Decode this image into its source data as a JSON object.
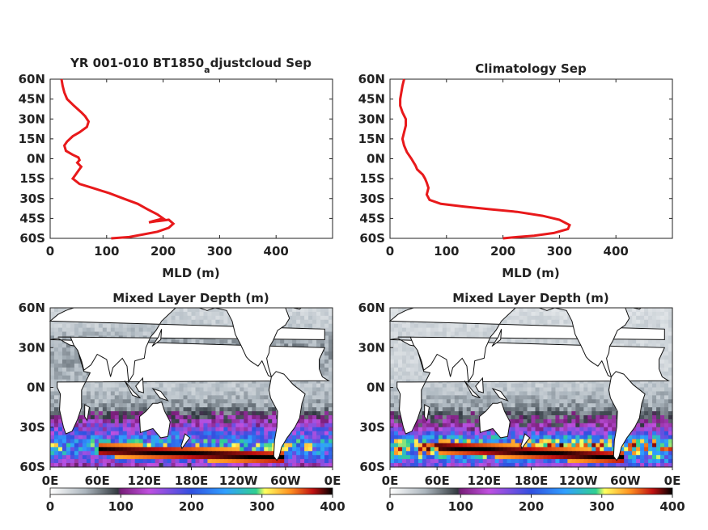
{
  "chart_data": [
    {
      "type": "line",
      "title_main": "YR 001-010 BT1850",
      "title_sub": "a",
      "title_tail": "djustcloud Sep",
      "xlabel": "MLD (m)",
      "xlim": [
        0,
        500
      ],
      "ylim": [
        -60,
        60
      ],
      "xticks": [
        0,
        100,
        200,
        300,
        400
      ],
      "yticks": [
        60,
        45,
        30,
        15,
        0,
        -15,
        -30,
        -45,
        -60
      ],
      "ytick_labels": [
        "60N",
        "45N",
        "30N",
        "15N",
        "0N",
        "15S",
        "30S",
        "45S",
        "60S"
      ],
      "line_color": "#e8191b",
      "x": [
        20,
        22,
        25,
        30,
        42,
        55,
        62,
        68,
        65,
        52,
        40,
        30,
        25,
        28,
        40,
        50,
        52,
        48,
        55,
        50,
        45,
        40,
        52,
        75,
        105,
        130,
        155,
        172,
        190,
        200,
        182,
        175,
        190,
        210,
        218,
        210,
        190,
        165,
        140,
        108
      ],
      "y": [
        60,
        55,
        50,
        45,
        40,
        35,
        32,
        28,
        24,
        20,
        17,
        13,
        10,
        6,
        3,
        1,
        -1,
        -3,
        -6,
        -9,
        -12,
        -15,
        -19,
        -22,
        -26,
        -30,
        -34,
        -38,
        -42,
        -45,
        -47,
        -48,
        -47,
        -46,
        -49,
        -52,
        -55,
        -57,
        -59,
        -60
      ]
    },
    {
      "type": "line",
      "title_main": "Climatology Sep",
      "xlabel": "MLD (m)",
      "xlim": [
        0,
        500
      ],
      "ylim": [
        -60,
        60
      ],
      "xticks": [
        0,
        100,
        200,
        300,
        400
      ],
      "yticks": [
        60,
        45,
        30,
        15,
        0,
        -15,
        -30,
        -45,
        -60
      ],
      "ytick_labels": [
        "60N",
        "45N",
        "30N",
        "15N",
        "0N",
        "15S",
        "30S",
        "45S",
        "60S"
      ],
      "line_color": "#e8191b",
      "x": [
        25,
        22,
        20,
        18,
        18,
        22,
        28,
        28,
        25,
        22,
        25,
        30,
        38,
        45,
        48,
        58,
        62,
        65,
        68,
        65,
        70,
        90,
        130,
        175,
        225,
        270,
        300,
        318,
        315,
        290,
        255,
        225,
        200
      ],
      "y": [
        60,
        55,
        50,
        45,
        40,
        35,
        30,
        25,
        20,
        15,
        10,
        5,
        0,
        -5,
        -8,
        -12,
        -15,
        -18,
        -22,
        -27,
        -31,
        -34,
        -36,
        -38,
        -40,
        -43,
        -46,
        -50,
        -53,
        -56,
        -58,
        -59,
        -60
      ]
    },
    {
      "type": "heatmap",
      "title": "Mixed Layer Depth (m)",
      "xticks": [
        "0E",
        "60E",
        "120E",
        "180E",
        "120W",
        "60W",
        "0E"
      ],
      "yticks": [
        "60N",
        "30N",
        "0N",
        "30S",
        "60S"
      ],
      "colorbar_ticks": [
        "0",
        "100",
        "200",
        "300",
        "400"
      ],
      "clim": [
        0,
        400
      ],
      "description_values": "zonal-mean depth (m) by latitude band",
      "lat_bands": [
        60,
        45,
        30,
        15,
        0,
        -15,
        -30,
        -45,
        -60
      ],
      "band_values": [
        30,
        40,
        60,
        55,
        40,
        60,
        150,
        260,
        120
      ]
    },
    {
      "type": "heatmap",
      "title": "Mixed Layer Depth (m)",
      "xticks": [
        "0E",
        "60E",
        "120E",
        "180E",
        "120W",
        "60W",
        "0E"
      ],
      "yticks": [
        "60N",
        "30N",
        "0N",
        "30S",
        "60S"
      ],
      "colorbar_ticks": [
        "0",
        "100",
        "200",
        "300",
        "400"
      ],
      "clim": [
        0,
        400
      ],
      "lat_bands": [
        60,
        45,
        30,
        15,
        0,
        -15,
        -30,
        -45,
        -60
      ],
      "band_values": [
        25,
        30,
        30,
        30,
        40,
        60,
        120,
        320,
        150
      ]
    }
  ]
}
